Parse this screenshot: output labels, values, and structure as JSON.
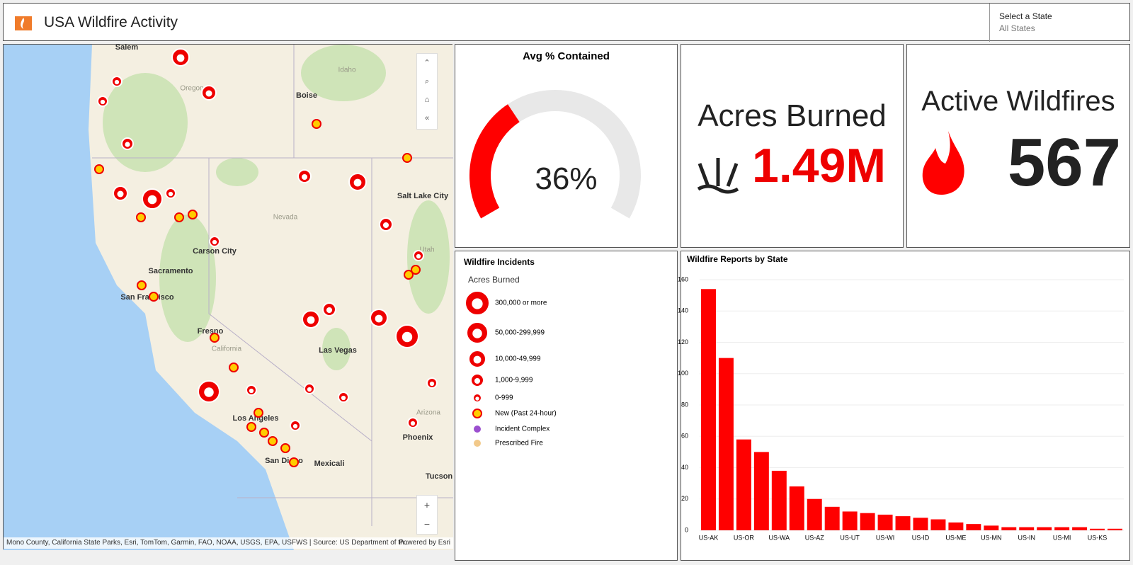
{
  "header": {
    "title": "USA Wildfire Activity",
    "selector_label": "Select a State",
    "selector_value": "All States"
  },
  "map": {
    "cities": [
      "Salem",
      "Boise",
      "Idaho",
      "Oregon",
      "Salt Lake City",
      "Nevada",
      "Carson City",
      "Sacramento",
      "San Francisco",
      "Utah",
      "Fresno",
      "California",
      "Las Vegas",
      "Arizona",
      "Phoenix",
      "San Diego",
      "Mexicali",
      "Los Angeles",
      "Tucson"
    ],
    "attribution": "Mono County, California State Parks, Esri, TomTom, Garmin, FAO, NOAA, USGS, EPA, USFWS | Source: US Department of th...",
    "powered": "Powered by Esri"
  },
  "gauge": {
    "title": "Avg % Contained",
    "value": 36,
    "label": "36%"
  },
  "acres": {
    "title": "Acres Burned",
    "value_label": "1.49M"
  },
  "active": {
    "title": "Active Wildfires",
    "value": 567
  },
  "legend": {
    "title": "Wildfire Incidents",
    "subtitle": "Acres Burned",
    "items": [
      "300,000 or more",
      "50,000-299,999",
      "10,000-49,999",
      "1,000-9,999",
      "0-999",
      "New (Past 24-hour)",
      "Incident Complex",
      "Prescribed Fire"
    ]
  },
  "chart_data": {
    "type": "bar",
    "title": "Wildfire Reports by State",
    "color": "#ff0000",
    "categories": [
      "US-AK",
      null,
      "US-OR",
      null,
      "US-WA",
      null,
      "US-AZ",
      null,
      "US-UT",
      null,
      "US-WI",
      null,
      "US-ID",
      null,
      "US-ME",
      null,
      "US-MN",
      null,
      "US-IN",
      null,
      "US-MI",
      null,
      "US-KS",
      null
    ],
    "values": [
      154,
      110,
      58,
      50,
      38,
      28,
      20,
      15,
      12,
      11,
      10,
      9,
      8,
      7,
      5,
      4,
      3,
      2,
      2,
      2,
      2,
      2,
      1,
      1
    ],
    "ylim": [
      0,
      160
    ],
    "yticks": [
      0,
      20,
      40,
      60,
      80,
      100,
      120,
      140,
      160
    ],
    "grid": true
  }
}
